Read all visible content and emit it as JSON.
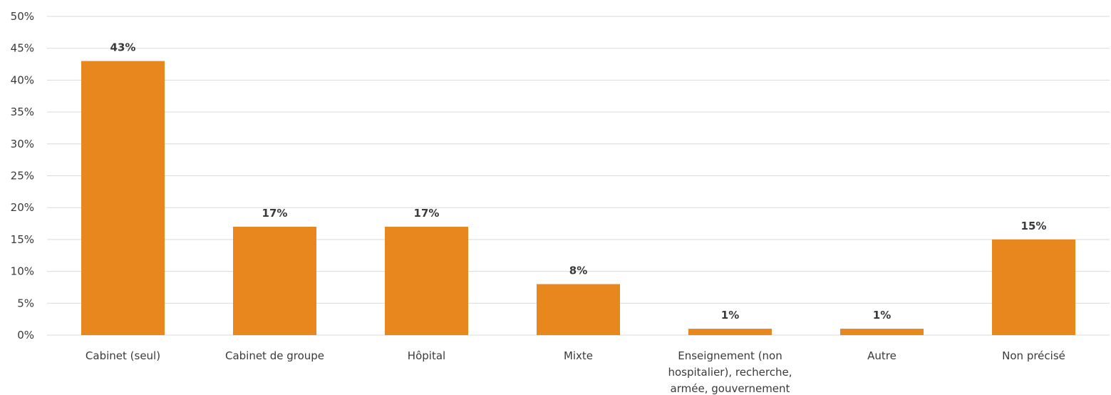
{
  "chart_data": {
    "type": "bar",
    "title": "",
    "xlabel": "",
    "ylabel": "",
    "ylim": [
      0,
      50
    ],
    "y_tick_step": 5,
    "y_tick_suffix": "%",
    "grid": true,
    "legend": "none",
    "bar_color": "#E8871E",
    "grid_color": "#d9d9d9",
    "categories": [
      [
        "Cabinet (seul)"
      ],
      [
        "Cabinet de groupe"
      ],
      [
        "Hôpital"
      ],
      [
        "Mixte"
      ],
      [
        "Enseignement (non",
        "hospitalier), recherche,",
        "armée, gouvernement"
      ],
      [
        "Autre"
      ],
      [
        "Non précisé"
      ]
    ],
    "values": [
      43,
      17,
      17,
      8,
      1,
      1,
      15
    ],
    "data_labels": [
      "43%",
      "17%",
      "17%",
      "8%",
      "1%",
      "1%",
      "15%"
    ]
  }
}
